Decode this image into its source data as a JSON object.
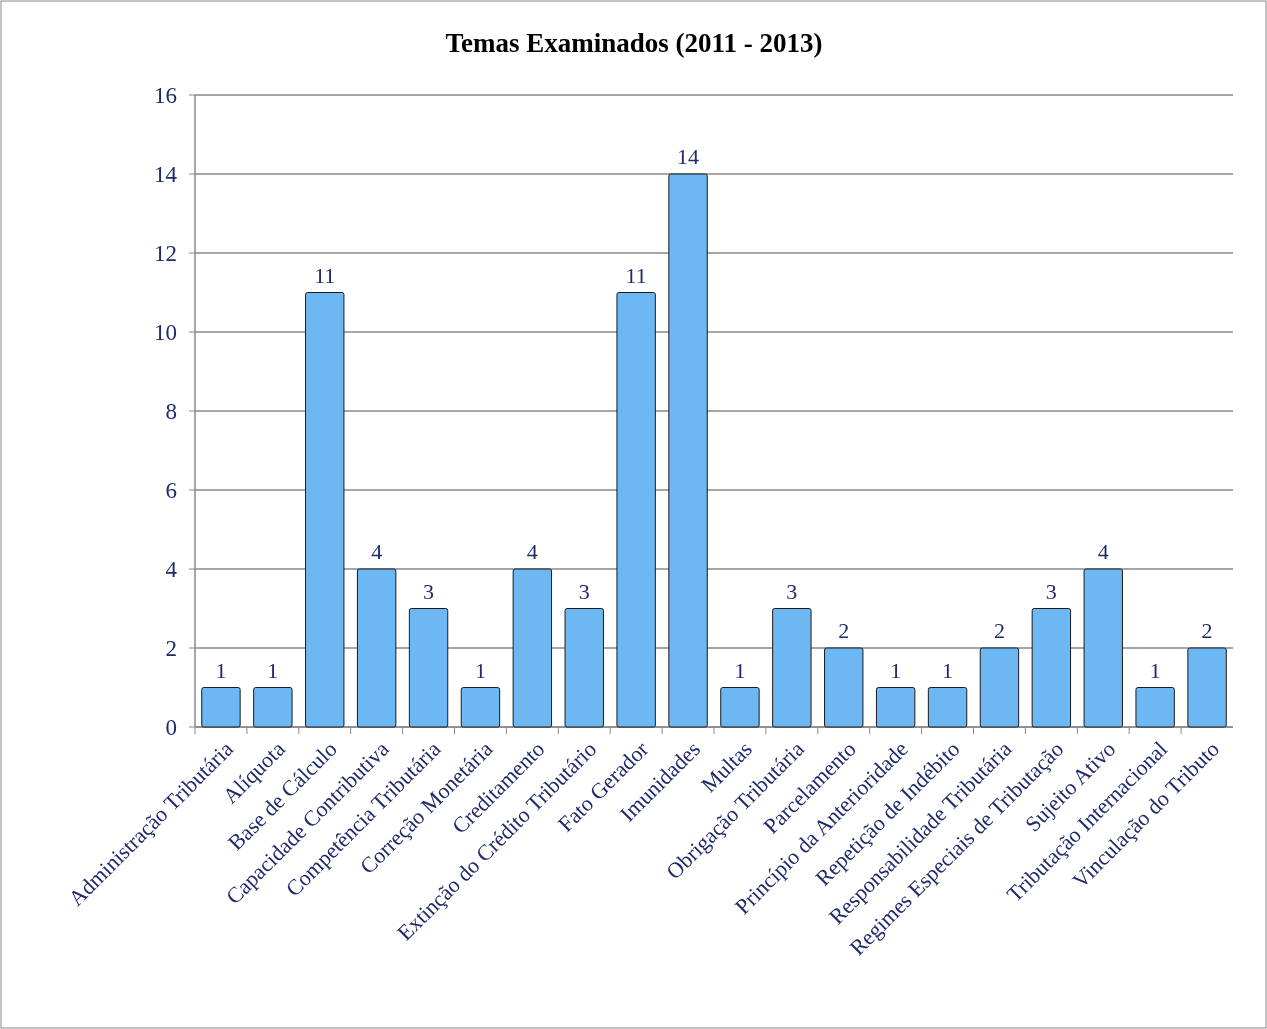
{
  "chart_data": {
    "type": "bar",
    "title": "Temas Examinados (2011 - 2013)",
    "categories": [
      "Administração Tributária",
      "Alíquota",
      "Base de Cálculo",
      "Capacidade Contributiva",
      "Competência Tributária",
      "Correção Monetária",
      "Creditamento",
      "Extinção do Crédito Tributário",
      "Fato Gerador",
      "Imunidades",
      "Multas",
      "Obrigação Tributária",
      "Parcelamento",
      "Princípio da Anterioridade",
      "Repetição de Indébito",
      "Responsabilidade Tributária",
      "Regimes Especiais de Tributação",
      "Sujeito Ativo",
      "Tributação Internacional",
      "Vinculação do Tributo"
    ],
    "values": [
      1,
      1,
      11,
      4,
      3,
      1,
      4,
      3,
      11,
      14,
      1,
      3,
      2,
      1,
      1,
      2,
      3,
      4,
      1,
      2
    ],
    "color": "#6db8f2",
    "ylim": [
      0,
      16
    ],
    "yticks": [
      0,
      2,
      4,
      6,
      8,
      10,
      12,
      14,
      16
    ],
    "grid": "y",
    "data_labels": true
  }
}
